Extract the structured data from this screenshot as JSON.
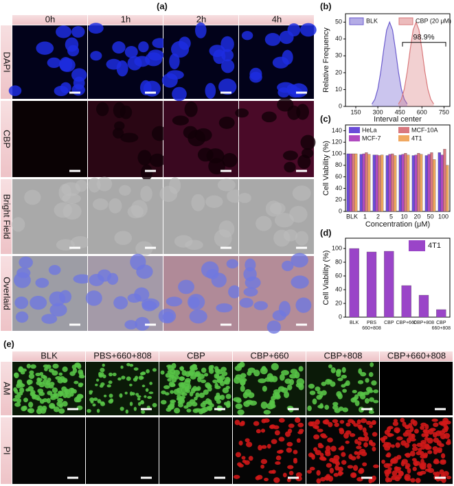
{
  "figure": {
    "a": {
      "label": "(a)",
      "columns": [
        "0h",
        "1h",
        "2h",
        "4h"
      ],
      "rows": [
        "DAPI",
        "CBP",
        "Bright Field",
        "Overlaid"
      ]
    },
    "e": {
      "label": "(e)",
      "columns": [
        "BLK",
        "PBS+660+808",
        "CBP",
        "CBP+660",
        "CBP+808",
        "CBP+660+808"
      ],
      "rows": [
        "AM",
        "PI"
      ]
    }
  },
  "chart_data": [
    {
      "type": "area",
      "panel_label": "(b)",
      "x_label": "Interval center",
      "y_label": "Relative Frequency",
      "annotation": "98.9%",
      "xlim": [
        80,
        790
      ],
      "xticks": [
        150,
        300,
        450,
        600,
        750
      ],
      "ylim": [
        0,
        55
      ],
      "yticks": [
        0,
        10,
        20,
        30,
        40,
        50
      ],
      "series": [
        {
          "name": "BLK",
          "color": "#6a5acd",
          "x": [
            260,
            280,
            300,
            320,
            340,
            360,
            380,
            400,
            420,
            440,
            460,
            480,
            500
          ],
          "values": [
            1.4,
            4.2,
            10.3,
            20.6,
            33.7,
            45.3,
            50,
            45.3,
            33.7,
            20.6,
            10.3,
            4.2,
            1.4
          ]
        },
        {
          "name": "CBP (20 μM)",
          "color": "#d9777a",
          "x": [
            440,
            460,
            480,
            500,
            520,
            540,
            560,
            580,
            600,
            620,
            640,
            660,
            680
          ],
          "values": [
            1.4,
            4.2,
            10.3,
            20.6,
            33.7,
            45.3,
            50,
            45.3,
            33.7,
            20.6,
            10.3,
            4.2,
            1.4
          ]
        }
      ]
    },
    {
      "type": "bar",
      "panel_label": "(c)",
      "x_label": "Concentration (μM)",
      "y_label": "Cell Viability (%)",
      "categories": [
        "BLK",
        "1",
        "2",
        "5",
        "10",
        "20",
        "50",
        "100"
      ],
      "ylim": [
        0,
        150
      ],
      "yticks": [
        0,
        20,
        40,
        60,
        80,
        100,
        120,
        140
      ],
      "series": [
        {
          "name": "HeLa",
          "color": "#6a4bd8",
          "values": [
            100,
            99,
            98,
            97,
            98,
            97,
            97,
            102
          ]
        },
        {
          "name": "MCF-7",
          "color": "#b04ac0",
          "values": [
            100,
            100,
            98,
            99,
            99,
            98,
            99,
            98
          ]
        },
        {
          "name": "MCF-10A",
          "color": "#d9787f",
          "values": [
            100,
            102,
            97,
            100,
            101,
            101,
            102,
            108
          ]
        },
        {
          "name": "4T1",
          "color": "#f0a860",
          "values": [
            100,
            99,
            98,
            97,
            98,
            99,
            90,
            80
          ]
        }
      ]
    },
    {
      "type": "bar",
      "panel_label": "(d)",
      "y_label": "Cell Viability (%)",
      "categories": [
        "BLK",
        "PBS 660+808",
        "CBP",
        "CBP+660",
        "CBP+808",
        "CBP 660+808"
      ],
      "ylim": [
        0,
        115
      ],
      "yticks": [
        0,
        20,
        40,
        60,
        80,
        100
      ],
      "series": [
        {
          "name": "4T1",
          "color": "#9a45c8",
          "values": [
            100,
            95,
            96,
            46,
            32,
            11
          ]
        }
      ]
    }
  ]
}
